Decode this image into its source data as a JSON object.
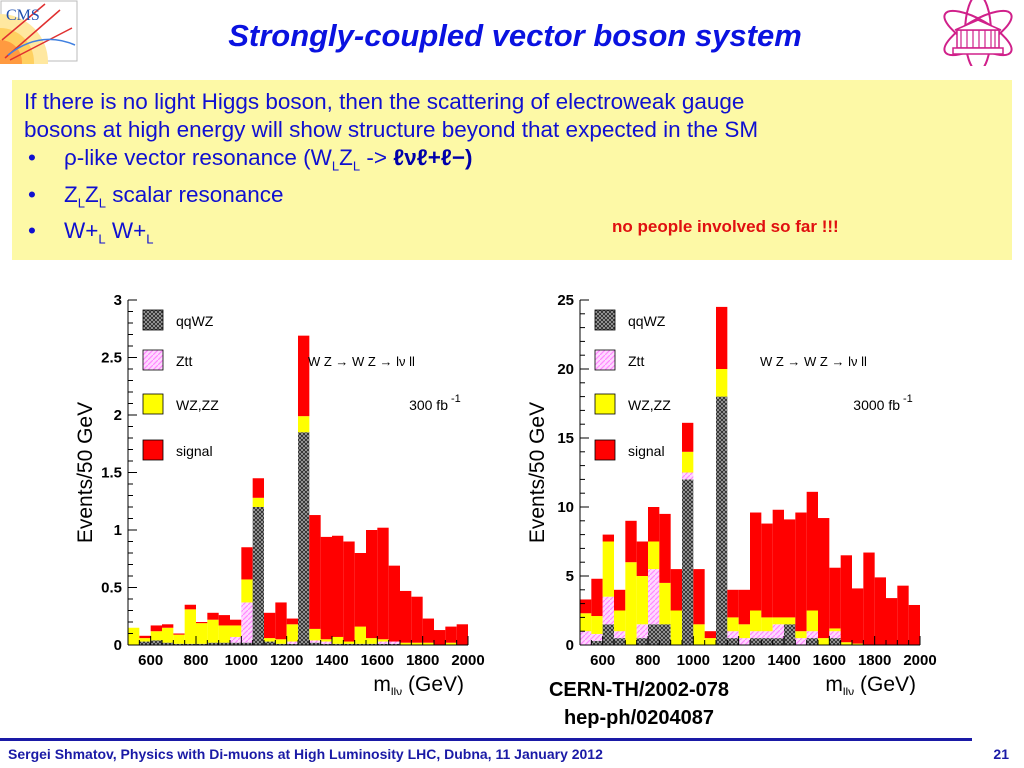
{
  "slide": {
    "title": "Strongly-coupled vector boson system",
    "cms_logo_text": "CMS",
    "text": {
      "line1": "If there is no light Higgs boson, then the scattering of electroweak gauge",
      "line2": "bosons at high energy will show structure beyond that expected in the SM",
      "bullet_mark": "•",
      "b1_prefix": "ρ-like vector resonance (W",
      "b1_sub1": "L",
      "b1_mid": "Z",
      "b1_sub2": "L",
      "b1_arrow": " -> ",
      "b1_bold": "ℓνℓ+ℓ−",
      "b1_close": ")",
      "b2_z1": "Z",
      "b2_sub1": "L",
      "b2_z2": "Z",
      "b2_sub2": "L",
      "b2_rest": " scalar resonance",
      "b3_w1": "W+",
      "b3_sub1": "L",
      "b3_w2": " W+",
      "b3_sub2": "L"
    },
    "note": "no people involved so far !!!",
    "reference_1": "CERN-TH/2002-078",
    "reference_2": "hep-ph/0204087",
    "footer": "Sergei Shmatov, Physics with Di-muons at High Luminosity LHC, Dubna, 11 January 2012",
    "page_number": "21"
  },
  "colors": {
    "title": "#0a12e0",
    "textbox_bg": "#fdf9a6",
    "note": "#e01010",
    "footer": "#1a1aa6",
    "signal": "#ff0000",
    "wzzz": "#ffff00",
    "ztt": "#ff88ff",
    "qqwz": "#888888"
  },
  "chart_data": [
    {
      "type": "bar",
      "stacked": true,
      "ylabel": "Events/50 GeV",
      "xlabel": "m",
      "xlabel_sub": "llν",
      "xlabel_unit": " (GeV)",
      "process_label": "W Z → W Z → lν ll",
      "lumi_label": "300 fb",
      "lumi_exp": "-1",
      "xlim": [
        500,
        2000
      ],
      "ylim": [
        0,
        3
      ],
      "xticks": [
        600,
        800,
        1000,
        1200,
        1400,
        1600,
        1800,
        2000
      ],
      "yticks": [
        0,
        0.5,
        1,
        1.5,
        2,
        2.5,
        3
      ],
      "ytick_labels": [
        "0",
        "0.5",
        "1",
        "1.5",
        "2",
        "2.5",
        "3"
      ],
      "bin_width": 50,
      "bin_lefts": [
        500,
        550,
        600,
        650,
        700,
        750,
        800,
        850,
        900,
        950,
        1000,
        1050,
        1100,
        1150,
        1200,
        1250,
        1300,
        1350,
        1400,
        1450,
        1500,
        1550,
        1600,
        1650,
        1700,
        1750,
        1800,
        1850,
        1900,
        1950
      ],
      "series": [
        {
          "name": "qqWZ",
          "values": [
            0,
            0.03,
            0.04,
            0.02,
            0.01,
            0.01,
            0.01,
            0.02,
            0.02,
            0.02,
            0.02,
            1.2,
            0.03,
            0.01,
            0.01,
            1.85,
            0.02,
            0.01,
            0.01,
            0.01,
            0.01,
            0.01,
            0.01,
            0.01,
            0,
            0,
            0,
            0,
            0,
            0
          ]
        },
        {
          "name": "Ztt",
          "values": [
            0,
            0,
            0,
            0,
            0,
            0,
            0,
            0,
            0,
            0.05,
            0.35,
            0,
            0,
            0,
            0.02,
            0,
            0.02,
            0.02,
            0,
            0,
            0,
            0,
            0.02,
            0.02,
            0,
            0,
            0,
            0,
            0,
            0
          ]
        },
        {
          "name": "WZ,ZZ",
          "values": [
            0.15,
            0.03,
            0.08,
            0.13,
            0.08,
            0.3,
            0.18,
            0.2,
            0.15,
            0.1,
            0.2,
            0.08,
            0.03,
            0.04,
            0.15,
            0.14,
            0.1,
            0.02,
            0.06,
            0.02,
            0.15,
            0.05,
            0.02,
            0,
            0.02,
            0.02,
            0.02,
            0,
            0.02,
            0
          ]
        },
        {
          "name": "signal",
          "values": [
            0,
            0.02,
            0.05,
            0.03,
            0.01,
            0.04,
            0.01,
            0.06,
            0.09,
            0.05,
            0.28,
            0.17,
            0.22,
            0.32,
            0.05,
            0.7,
            0.99,
            0.89,
            0.88,
            0.87,
            0.64,
            0.94,
            0.97,
            0.66,
            0.45,
            0.4,
            0.21,
            0.13,
            0.14,
            0.18
          ]
        }
      ]
    },
    {
      "type": "bar",
      "stacked": true,
      "ylabel": "Events/50 GeV",
      "xlabel": "m",
      "xlabel_sub": "llν",
      "xlabel_unit": " (GeV)",
      "process_label": "W Z → W Z → lν ll",
      "lumi_label": "3000 fb",
      "lumi_exp": "-1",
      "xlim": [
        500,
        2000
      ],
      "ylim": [
        0,
        25
      ],
      "xticks": [
        600,
        800,
        1000,
        1200,
        1400,
        1600,
        1800,
        2000
      ],
      "yticks": [
        0,
        5,
        10,
        15,
        20,
        25
      ],
      "ytick_labels": [
        "0",
        "5",
        "10",
        "15",
        "20",
        "25"
      ],
      "bin_width": 50,
      "bin_lefts": [
        500,
        550,
        600,
        650,
        700,
        750,
        800,
        850,
        900,
        950,
        1000,
        1050,
        1100,
        1150,
        1200,
        1250,
        1300,
        1350,
        1400,
        1450,
        1500,
        1550,
        1600,
        1650,
        1700,
        1750,
        1800,
        1850,
        1900,
        1950
      ],
      "series": [
        {
          "name": "qqWZ",
          "values": [
            0,
            0.3,
            1.5,
            0.5,
            0,
            0.5,
            1.5,
            1.5,
            0,
            12,
            0,
            0,
            18,
            0.5,
            0,
            0.5,
            0.5,
            0.5,
            1.5,
            0,
            0.5,
            0,
            0.5,
            0,
            0,
            0,
            0,
            0,
            0,
            0
          ]
        },
        {
          "name": "Ztt",
          "values": [
            1,
            0.5,
            2,
            0.5,
            0,
            1,
            4,
            0,
            0,
            0.5,
            0,
            0,
            0,
            0.5,
            0.5,
            0.5,
            0.5,
            1,
            0,
            0.5,
            0.5,
            0,
            0.5,
            0,
            0,
            0,
            0,
            0,
            0,
            0
          ]
        },
        {
          "name": "WZ,ZZ",
          "values": [
            1.3,
            1.3,
            4,
            1.5,
            6,
            3.5,
            2,
            3,
            2.5,
            1.5,
            1.5,
            0.5,
            2,
            1,
            1,
            1.5,
            1,
            0.5,
            0.5,
            0.5,
            1.5,
            0.5,
            0.2,
            0.2,
            0.1,
            0,
            0,
            0,
            0,
            0
          ]
        },
        {
          "name": "signal",
          "values": [
            1,
            2.7,
            0.5,
            1.5,
            3,
            2.5,
            2.5,
            5,
            3,
            2.1,
            4,
            0.5,
            4.5,
            2,
            2.5,
            7.1,
            6.8,
            7.8,
            7.1,
            8.6,
            8.6,
            8.7,
            4.4,
            6.3,
            4,
            6.7,
            4.9,
            3.4,
            4.3,
            2.9
          ]
        }
      ]
    }
  ]
}
